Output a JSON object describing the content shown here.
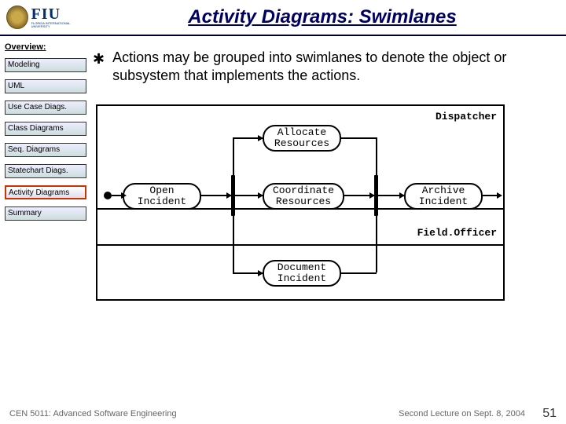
{
  "header": {
    "logo_main": "FIU",
    "logo_sub": "FLORIDA INTERNATIONAL UNIVERSITY",
    "title": "Activity Diagrams: Swimlanes"
  },
  "sidebar": {
    "heading": "Overview:",
    "items": [
      {
        "label": "Modeling",
        "active": false
      },
      {
        "label": "UML",
        "active": false
      },
      {
        "label": "Use Case Diags.",
        "active": false
      },
      {
        "label": "Class Diagrams",
        "active": false
      },
      {
        "label": "Seq. Diagrams",
        "active": false
      },
      {
        "label": "Statechart Diags.",
        "active": false
      },
      {
        "label": "Activity Diagrams",
        "active": true
      },
      {
        "label": "Summary",
        "active": false
      }
    ]
  },
  "main": {
    "bullet": "Actions may be grouped into swimlanes to denote the object or subsystem that implements the actions."
  },
  "diagram": {
    "type": "activity-swimlane",
    "lanes": [
      {
        "label": "Dispatcher"
      },
      {
        "label": "Field.Officer"
      }
    ],
    "activities": {
      "allocate": "Allocate Resources",
      "open": "Open Incident",
      "coordinate": "Coordinate Resources",
      "archive": "Archive Incident",
      "document": "Document Incident"
    },
    "colors": {
      "border": "#000000",
      "background": "#ffffff",
      "sync_bar": "#000000"
    }
  },
  "footer": {
    "left": "CEN 5011: Advanced Software Engineering",
    "mid": "Second Lecture on Sept. 8, 2004",
    "page": "51"
  }
}
